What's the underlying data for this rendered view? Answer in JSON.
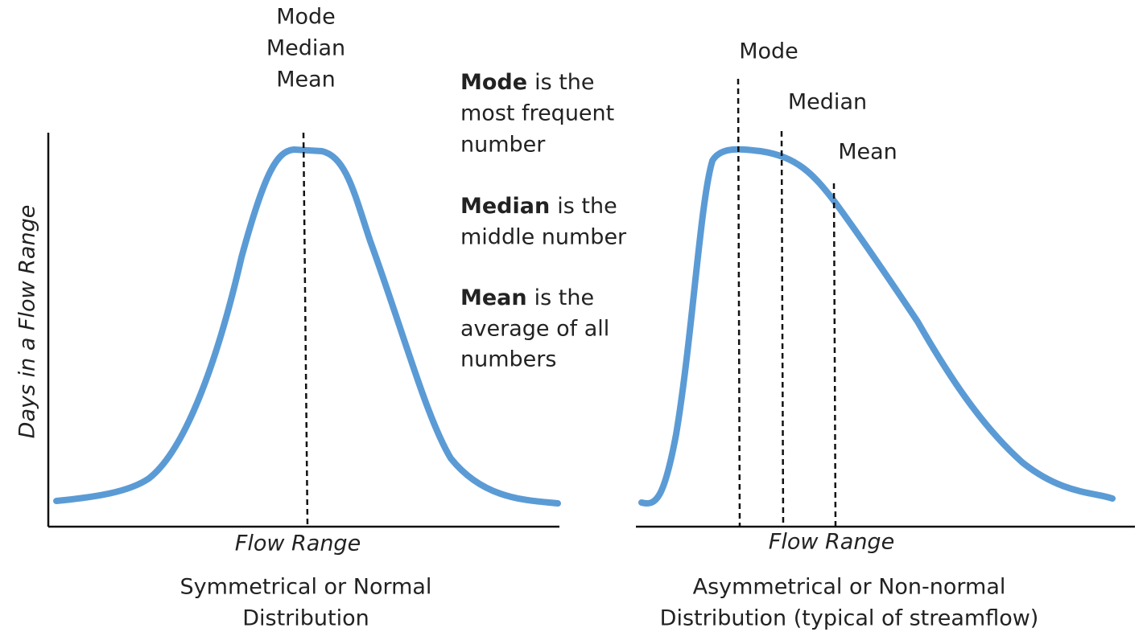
{
  "left_panel": {
    "center_labels": [
      "Mode",
      "Median",
      "Mean"
    ],
    "y_axis_label": "Days in a Flow Range",
    "x_axis_label": "Flow Range",
    "caption": [
      "Symmetrical or Normal",
      "Distribution"
    ]
  },
  "definitions": [
    {
      "term": "Mode",
      "lines": [
        "is the",
        "most frequent",
        "number"
      ]
    },
    {
      "term": "Median",
      "lines": [
        "is the",
        "middle number"
      ]
    },
    {
      "term": "Mean",
      "lines": [
        "is the",
        "average of all",
        "numbers"
      ]
    }
  ],
  "right_panel": {
    "markers": [
      "Mode",
      "Median",
      "Mean"
    ],
    "x_axis_label": "Flow Range",
    "caption": [
      "Asymmetrical or Non-normal",
      "Distribution (typical of streamflow)"
    ]
  }
}
